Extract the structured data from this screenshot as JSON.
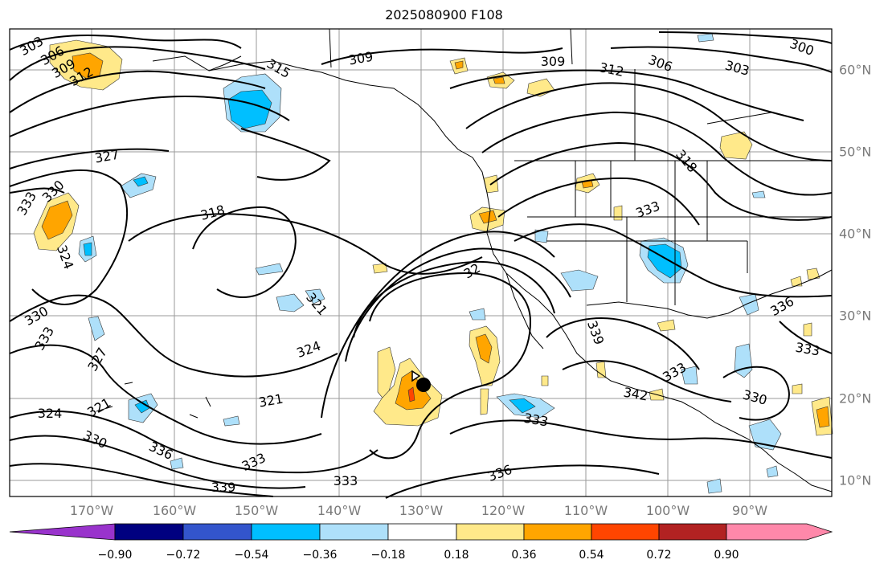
{
  "title": "2025080900 F108",
  "axes": {
    "lon_labels": [
      "170°W",
      "160°W",
      "150°W",
      "140°W",
      "130°W",
      "120°W",
      "110°W",
      "100°W",
      "90°W"
    ],
    "lat_labels": [
      "60°N",
      "50°N",
      "40°N",
      "30°N",
      "20°N",
      "10°N"
    ]
  },
  "colorbar": {
    "tick_labels": [
      "−0.90",
      "−0.72",
      "−0.54",
      "−0.36",
      "−0.18",
      "0.18",
      "0.36",
      "0.54",
      "0.72",
      "0.90"
    ],
    "colors": [
      "#9933cc",
      "#000080",
      "#3355cc",
      "#00bfff",
      "#aee0fa",
      "#ffffff",
      "#ffe98a",
      "#ffa500",
      "#ff4500",
      "#b22222",
      "#ff88aa"
    ]
  },
  "contour_labels": [
    "303",
    "306",
    "309",
    "312",
    "309",
    "312",
    "306",
    "303",
    "300",
    "315",
    "309",
    "327",
    "333",
    "330",
    "324",
    "318",
    "318",
    "333",
    "321",
    "324",
    "32",
    "330",
    "333",
    "327",
    "321",
    "324",
    "330",
    "336",
    "333",
    "339",
    "333",
    "336",
    "339",
    "333",
    "342",
    "333",
    "336",
    "330",
    "333",
    "321"
  ],
  "marker": "storm-center-dot"
}
